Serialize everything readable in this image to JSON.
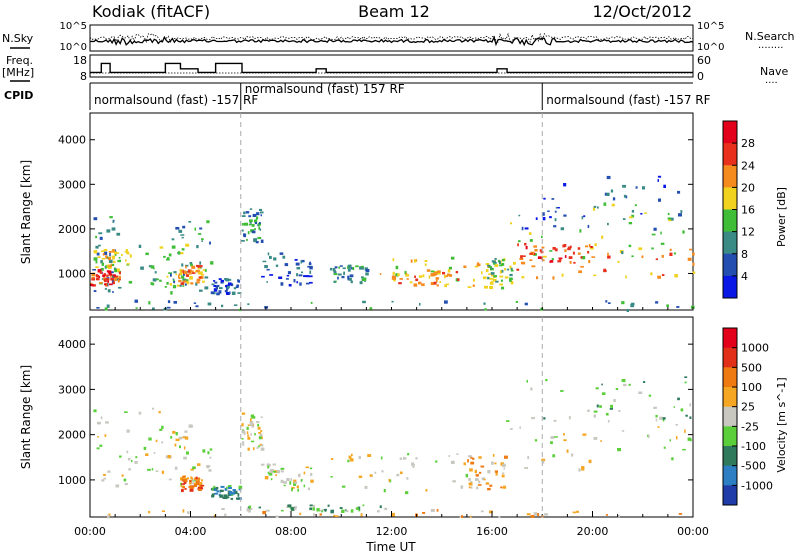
{
  "header": {
    "station": "Kodiak (fitACF)",
    "beam": "Beam 12",
    "date": "12/Oct/2012"
  },
  "labels": {
    "nsky": "N.Sky",
    "nsearch": "N.Search",
    "freq": "Freq.",
    "mhz": "[MHz]",
    "nave": "Nave",
    "cpid": "CPID",
    "dots": "........",
    "short_dots": "...."
  },
  "chart_data": [
    {
      "type": "line",
      "panel": "noise",
      "series": [
        {
          "name": "N.Sky"
        },
        {
          "name": "N.Search"
        }
      ],
      "left_ticks": [
        "10^5",
        "10^0"
      ],
      "right_ticks": [
        "10^5",
        "10^0"
      ]
    },
    {
      "type": "line",
      "panel": "frequency / nave",
      "series": [
        {
          "name": "Freq."
        },
        {
          "name": "Nave"
        }
      ],
      "left_ticks": [
        "18",
        "8"
      ],
      "right_ticks": [
        "60",
        "0"
      ],
      "freq_steps": [
        {
          "t": 0.0,
          "v": 10
        },
        {
          "t": 0.25,
          "v": 10
        },
        {
          "t": 0.45,
          "v": 15
        },
        {
          "t": 0.8,
          "v": 10
        },
        {
          "t": 3.0,
          "v": 15
        },
        {
          "t": 3.6,
          "v": 12
        },
        {
          "t": 4.3,
          "v": 10
        },
        {
          "t": 5.0,
          "v": 15
        },
        {
          "t": 6.05,
          "v": 10
        },
        {
          "t": 9.0,
          "v": 12
        },
        {
          "t": 9.4,
          "v": 10
        },
        {
          "t": 16.2,
          "v": 12
        },
        {
          "t": 16.6,
          "v": 10
        },
        {
          "t": 24.0,
          "v": 10
        }
      ]
    },
    {
      "type": "table",
      "panel": "cpid",
      "segments": [
        {
          "start": 0,
          "end": 6,
          "label": "normalsound (fast) -157 RF"
        },
        {
          "start": 6,
          "end": 18,
          "label": "normalsound (fast) 157 RF"
        },
        {
          "start": 18,
          "end": 24,
          "label": "normalsound (fast) -157 RF"
        }
      ]
    },
    {
      "type": "heatmap",
      "panel": "power",
      "ylabel": "Slant Range [km]",
      "xlim": [
        0,
        24
      ],
      "ylim": [
        180,
        4600
      ],
      "yticks": [
        1000,
        2000,
        3000,
        4000
      ],
      "colorbar_label": "Power [dB]",
      "colorbar_ticks": [
        "28",
        "24",
        "20",
        "16",
        "12",
        "8",
        "4"
      ],
      "colors": [
        "#0a18e6",
        "#244fb0",
        "#3a8a86",
        "#3fbd36",
        "#f0d21f",
        "#f58a1e",
        "#e8301c",
        "#e3001a"
      ],
      "blobs": [
        {
          "t0": 0.0,
          "t1": 1.2,
          "r0": 600,
          "r1": 2400,
          "c": 2
        },
        {
          "t0": 0.0,
          "t1": 1.2,
          "r0": 750,
          "r1": 1100,
          "c": 6
        },
        {
          "t0": 0.1,
          "t1": 1.5,
          "r0": 1100,
          "r1": 1600,
          "c": 4
        },
        {
          "t0": 1.5,
          "t1": 3.8,
          "r0": 700,
          "r1": 1700,
          "c": 3
        },
        {
          "t0": 3.0,
          "t1": 4.8,
          "r0": 600,
          "r1": 2200,
          "c": 2
        },
        {
          "t0": 3.5,
          "t1": 4.5,
          "r0": 800,
          "r1": 1200,
          "c": 5
        },
        {
          "t0": 4.8,
          "t1": 6.0,
          "r0": 550,
          "r1": 900,
          "c": 1
        },
        {
          "t0": 6.0,
          "t1": 6.8,
          "r0": 1700,
          "r1": 2500,
          "c": 2
        },
        {
          "t0": 6.8,
          "t1": 8.8,
          "r0": 700,
          "r1": 1500,
          "c": 1
        },
        {
          "t0": 9.5,
          "t1": 11.0,
          "r0": 800,
          "r1": 1200,
          "c": 2
        },
        {
          "t0": 11.5,
          "t1": 16.5,
          "r0": 700,
          "r1": 1400,
          "c": 4
        },
        {
          "t0": 12.0,
          "t1": 15.5,
          "r0": 750,
          "r1": 1100,
          "c": 5
        },
        {
          "t0": 15.8,
          "t1": 16.8,
          "r0": 800,
          "r1": 1400,
          "c": 3
        },
        {
          "t0": 16.5,
          "t1": 24.0,
          "r0": 1300,
          "r1": 2600,
          "c": 3
        },
        {
          "t0": 16.8,
          "t1": 24.0,
          "r0": 900,
          "r1": 1600,
          "c": 5
        },
        {
          "t0": 17.0,
          "t1": 20.0,
          "r0": 1200,
          "r1": 1700,
          "c": 6
        },
        {
          "t0": 17.0,
          "t1": 24.0,
          "r0": 2000,
          "r1": 3200,
          "c": 1
        },
        {
          "t0": 0.0,
          "t1": 24.0,
          "r0": 200,
          "r1": 420,
          "c": 2
        }
      ]
    },
    {
      "type": "heatmap",
      "panel": "velocity",
      "ylabel": "Slant Range [km]",
      "xlabel": "Time UT",
      "xlim": [
        0,
        24
      ],
      "ylim": [
        180,
        4600
      ],
      "yticks": [
        1000,
        2000,
        3000,
        4000
      ],
      "xtick_labels": [
        "00:00",
        "04:00",
        "08:00",
        "12:00",
        "16:00",
        "20:00",
        "00:00"
      ],
      "colorbar_label": "Velocity [m s^-1]",
      "colorbar_ticks": [
        "1000",
        "500",
        "100",
        "25",
        "-25",
        "-100",
        "-500",
        "-1000"
      ],
      "colors": [
        "#1f3ca8",
        "#2d7fc4",
        "#2f7a5c",
        "#5bcf3a",
        "#c8c8c0",
        "#f5a623",
        "#f07a12",
        "#e23018",
        "#e3001a"
      ],
      "blobs": [
        {
          "t0": 0.0,
          "t1": 3.0,
          "r0": 900,
          "r1": 2600,
          "c": 4
        },
        {
          "t0": 3.0,
          "t1": 4.8,
          "r0": 900,
          "r1": 2300,
          "c": 4
        },
        {
          "t0": 3.6,
          "t1": 4.5,
          "r0": 800,
          "r1": 1100,
          "c": 6
        },
        {
          "t0": 4.8,
          "t1": 6.0,
          "r0": 600,
          "r1": 900,
          "c": 2
        },
        {
          "t0": 6.0,
          "t1": 6.8,
          "r0": 1700,
          "r1": 2500,
          "c": 4
        },
        {
          "t0": 6.8,
          "t1": 8.8,
          "r0": 800,
          "r1": 1400,
          "c": 4
        },
        {
          "t0": 6.0,
          "t1": 12.0,
          "r0": 330,
          "r1": 460,
          "c": 3
        },
        {
          "t0": 9.5,
          "t1": 15.0,
          "r0": 700,
          "r1": 1600,
          "c": 4
        },
        {
          "t0": 15.0,
          "t1": 16.5,
          "r0": 800,
          "r1": 1600,
          "c": 5
        },
        {
          "t0": 16.5,
          "t1": 24.0,
          "r0": 1100,
          "r1": 2400,
          "c": 4
        },
        {
          "t0": 17.0,
          "t1": 24.0,
          "r0": 2300,
          "r1": 3300,
          "c": 3
        },
        {
          "t0": 0.0,
          "t1": 24.0,
          "r0": 200,
          "r1": 380,
          "c": 5
        }
      ]
    }
  ]
}
